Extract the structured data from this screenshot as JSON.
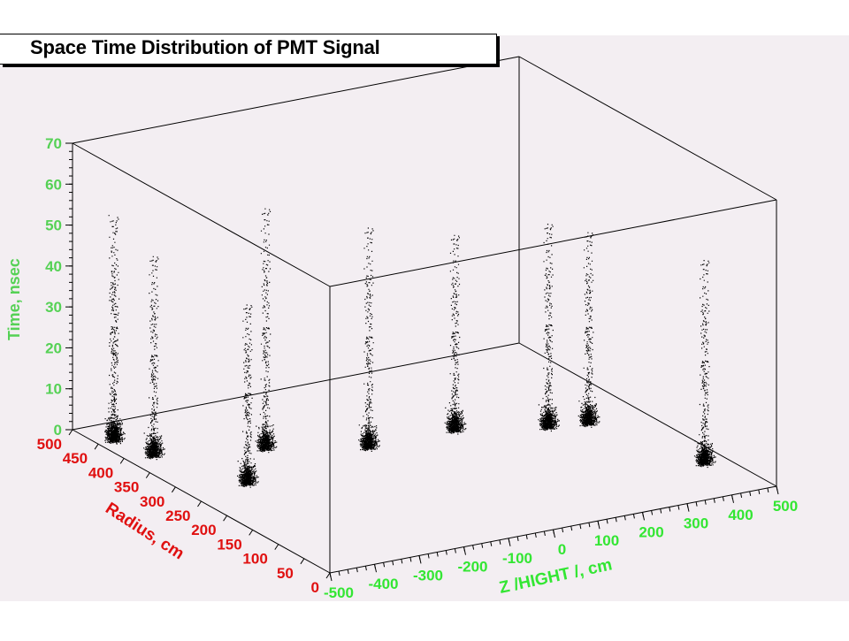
{
  "title": "Space Time Distribution of PMT Signal",
  "colors": {
    "background": "#f3eef2",
    "frame": "#000000",
    "time_axis": "#55d155",
    "z_axis": "#33e633",
    "radius_axis": "#e01010",
    "points": "#000000"
  },
  "chart_data": {
    "type": "scatter",
    "title": "Space Time Distribution of PMT Signal",
    "dimensions": 3,
    "axes": {
      "x": {
        "label": "Z /HIGHT /, cm",
        "range": [
          -500,
          500
        ],
        "ticks": [
          "-500",
          "-400",
          "-300",
          "-200",
          "-100",
          "0",
          "100",
          "200",
          "300",
          "400",
          "500"
        ]
      },
      "y": {
        "label": "Radius, cm",
        "range": [
          0,
          500
        ],
        "ticks": [
          "0",
          "50",
          "100",
          "150",
          "200",
          "250",
          "300",
          "350",
          "400",
          "450",
          "500"
        ]
      },
      "z": {
        "label": "Time, nsec",
        "range": [
          0,
          70
        ],
        "ticks": [
          "0",
          "10",
          "20",
          "30",
          "40",
          "50",
          "60",
          "70"
        ]
      }
    },
    "grid": false,
    "legend": "none",
    "clusters": [
      {
        "z": -500,
        "r": 420,
        "t_peak": 3,
        "t_max": 58
      },
      {
        "z": -480,
        "r": 360,
        "t_peak": 3,
        "t_max": 52
      },
      {
        "z": -420,
        "r": 230,
        "t_peak": 4,
        "t_max": 48
      },
      {
        "z": -310,
        "r": 290,
        "t_peak": 6,
        "t_max": 65
      },
      {
        "z": -160,
        "r": 220,
        "t_peak": 8,
        "t_max": 62
      },
      {
        "z": 10,
        "r": 200,
        "t_peak": 10,
        "t_max": 58
      },
      {
        "z": 150,
        "r": 140,
        "t_peak": 12,
        "t_max": 62
      },
      {
        "z": 240,
        "r": 140,
        "t_peak": 11,
        "t_max": 58
      },
      {
        "z": 350,
        "r": 10,
        "t_peak": 8,
        "t_max": 58
      }
    ]
  }
}
